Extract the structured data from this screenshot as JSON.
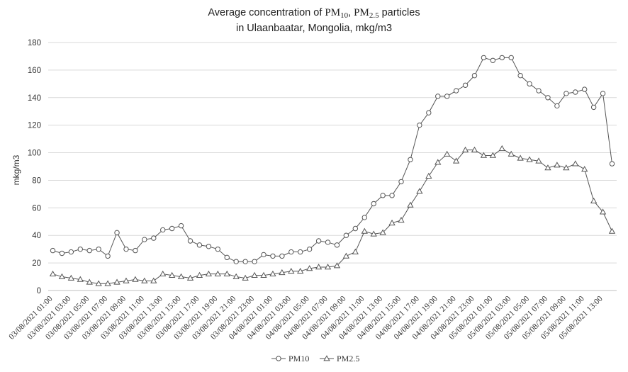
{
  "title": {
    "prefix": "Average concentration of ",
    "pm10_base": "PM",
    "pm10_sub": "10",
    "sep": ", ",
    "pm25_base": "PM",
    "pm25_sub": "2.5",
    "suffix": " particles",
    "line2": "in Ulaanbaatar, Mongolia, mkg/m3"
  },
  "chart_data": {
    "type": "line",
    "ylabel": "mkg/m3",
    "xlabel": "",
    "ylim": [
      0,
      180
    ],
    "yticks": [
      0,
      20,
      40,
      60,
      80,
      100,
      120,
      140,
      160,
      180
    ],
    "grid": "horizontal",
    "legend": "bottom-center",
    "x_tick_labels": [
      "03/08/2021 01:00",
      "03/08/2021 03:00",
      "03/08/2021 05:00",
      "03/08/2021 07:00",
      "03/08/2021 09:00",
      "03/08/2021 11:00",
      "03/08/2021 13:00",
      "03/08/2021 15:00",
      "03/08/2021 17:00",
      "03/08/2021 19:00",
      "03/08/2021 21:00",
      "03/08/2021 23:00",
      "04/08/2021 01:00",
      "04/08/2021 03:00",
      "04/08/2021 05:00",
      "04/08/2021 07:00",
      "04/08/2021 09:00",
      "04/08/2021 11:00",
      "04/08/2021 13:00",
      "04/08/2021 15:00",
      "04/08/2021 17:00",
      "04/08/2021 19:00",
      "04/08/2021 21:00",
      "04/08/2021 23:00",
      "05/08/2021 01:00",
      "05/08/2021 03:00",
      "05/08/2021 05:00",
      "05/08/2021 07:00",
      "05/08/2021 09:00",
      "05/08/2021 11:00",
      "05/08/2021 13:00"
    ],
    "series": [
      {
        "name": "PM10",
        "marker": "circle",
        "color": "#555555",
        "values": [
          29,
          27,
          28,
          30,
          29,
          30,
          25,
          42,
          30,
          29,
          37,
          38,
          44,
          45,
          47,
          36,
          33,
          32,
          30,
          24,
          21,
          21,
          21,
          26,
          25,
          25,
          28,
          28,
          30,
          36,
          35,
          33,
          40,
          45,
          53,
          63,
          69,
          69,
          79,
          95,
          120,
          129,
          141,
          141,
          145,
          149,
          156,
          169,
          167,
          169,
          169,
          156,
          150,
          145,
          140,
          134,
          143,
          144,
          146,
          133,
          143,
          92
        ]
      },
      {
        "name": "PM2.5",
        "marker": "triangle",
        "color": "#555555",
        "values": [
          12,
          10,
          9,
          8,
          6,
          5,
          5,
          6,
          7,
          8,
          7,
          7,
          12,
          11,
          10,
          9,
          11,
          12,
          12,
          12,
          10,
          9,
          11,
          11,
          12,
          13,
          14,
          14,
          16,
          17,
          17,
          18,
          25,
          28,
          43,
          41,
          42,
          49,
          51,
          62,
          72,
          83,
          93,
          99,
          94,
          102,
          102,
          98,
          98,
          103,
          99,
          96,
          95,
          94,
          89,
          91,
          89,
          92,
          88,
          65,
          57,
          43
        ]
      }
    ]
  },
  "legend": {
    "items": [
      "PM10",
      "PM2.5"
    ]
  }
}
